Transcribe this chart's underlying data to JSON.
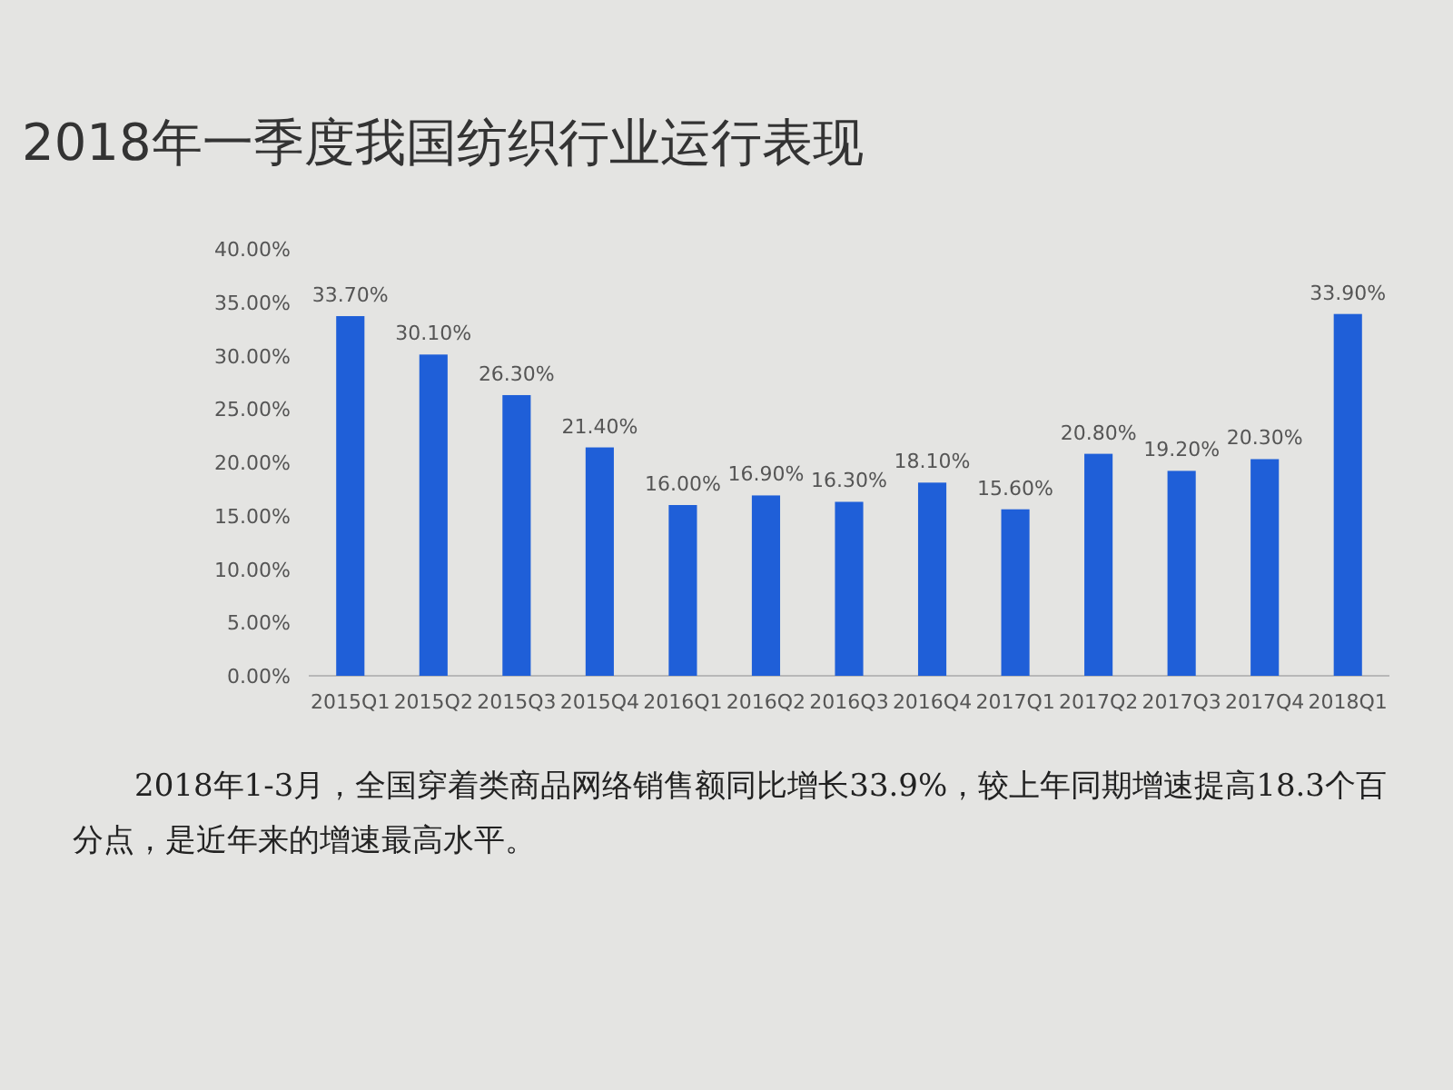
{
  "chart_data": {
    "type": "bar",
    "title": "2018年一季度我国纺织行业运行表现",
    "categories": [
      "2015Q1",
      "2015Q2",
      "2015Q3",
      "2015Q4",
      "2016Q1",
      "2016Q2",
      "2016Q3",
      "2016Q4",
      "2017Q1",
      "2017Q2",
      "2017Q3",
      "2017Q4",
      "2018Q1"
    ],
    "values": [
      33.7,
      30.1,
      26.3,
      21.4,
      16.0,
      16.9,
      16.3,
      18.1,
      15.6,
      20.8,
      19.2,
      20.3,
      33.9
    ],
    "value_labels": [
      "33.70%",
      "30.10%",
      "26.30%",
      "21.40%",
      "16.00%",
      "16.90%",
      "16.30%",
      "18.10%",
      "15.60%",
      "20.80%",
      "19.20%",
      "20.30%",
      "33.90%"
    ],
    "color": "#1f5fd8",
    "ylim": [
      0,
      40
    ],
    "yticks": [
      {
        "value": 0,
        "label": "0.00%"
      },
      {
        "value": 5,
        "label": "5.00%"
      },
      {
        "value": 10,
        "label": "10.00%"
      },
      {
        "value": 15,
        "label": "15.00%"
      },
      {
        "value": 20,
        "label": "20.00%"
      },
      {
        "value": 25,
        "label": "25.00%"
      },
      {
        "value": 30,
        "label": "30.00%"
      },
      {
        "value": 35,
        "label": "35.00%"
      },
      {
        "value": 40,
        "label": "40.00%"
      }
    ],
    "annotations": [
      "2018年1-3月，全国穿着类商品网络销售额同比增长33.9%，较上年同期增速提高18.3个百分点，是近年来的增速最高水平。"
    ]
  }
}
